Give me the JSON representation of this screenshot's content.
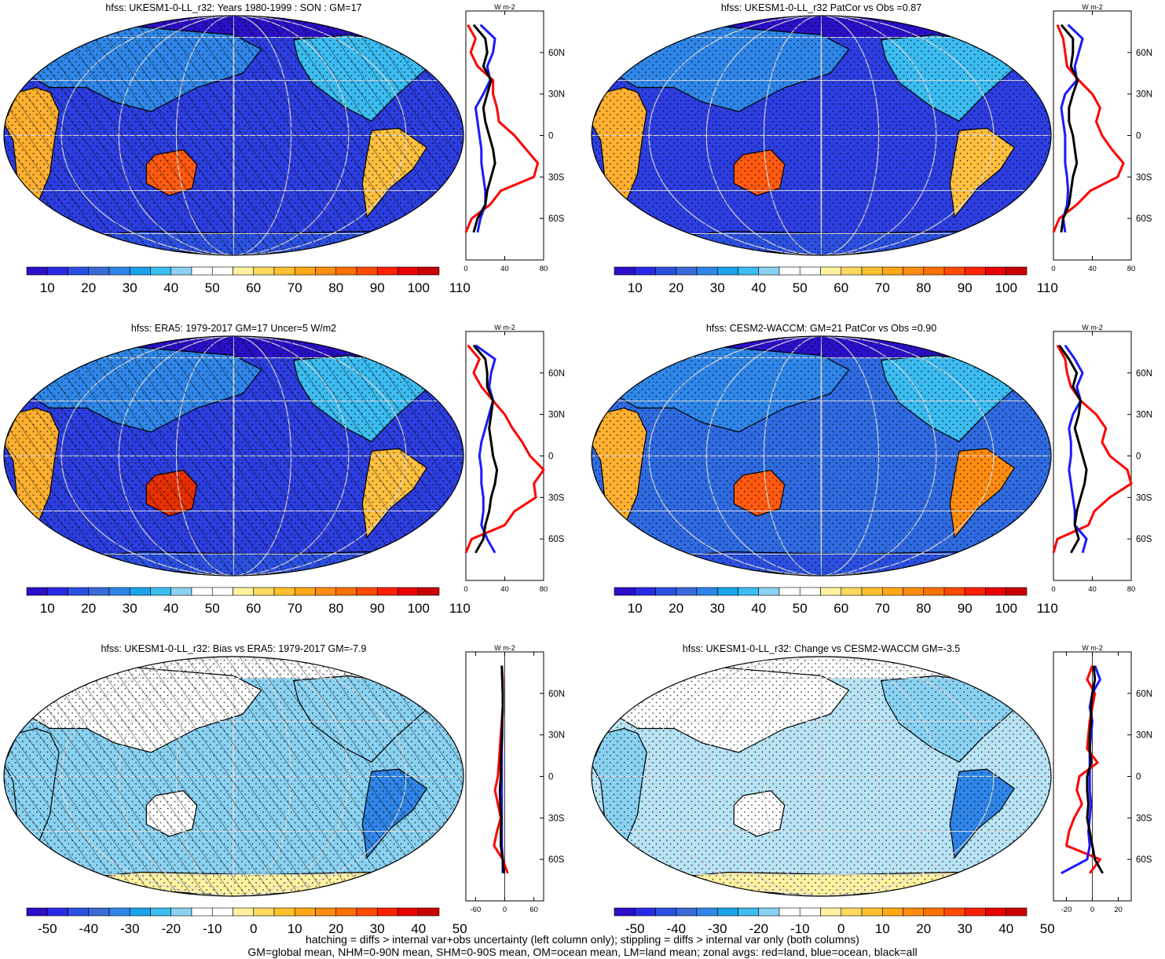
{
  "footnote": [
    "hatching = diffs > internal var+obs uncertainty (left column only); stippling = diffs > internal var only (both columns)",
    "GM=global mean, NHM=0-90N mean, SHM=0-90S mean, OM=ocean mean, LM=land mean; zonal avgs: red=land, blue=ocean, black=all"
  ],
  "colors": {
    "land": "#ff0000",
    "ocean": "#1a1aff",
    "all": "#000000",
    "grid": "#d9d9d9",
    "coast": "#000000"
  },
  "chart_data": [
    {
      "type": "heatmap",
      "id": "p1",
      "title": "hfss: UKESM1-0-LL_r32: Years 1980-1999 : SON : GM=17",
      "colorbar": {
        "ticks": [
          "10",
          "20",
          "30",
          "40",
          "50",
          "60",
          "70",
          "80",
          "90",
          "100",
          "110"
        ],
        "colors": [
          "#2a10c8",
          "#2a2ae6",
          "#2c50e0",
          "#3a6ad8",
          "#2f86e8",
          "#1aa3ea",
          "#3cbcf0",
          "#8ad2f2",
          "#ffffff",
          "#ffffff",
          "#fff2a0",
          "#ffd860",
          "#ffc030",
          "#ffa818",
          "#ff8c10",
          "#ff7000",
          "#ff4a00",
          "#ff2000",
          "#e80000",
          "#c80000"
        ]
      },
      "hatched": true,
      "zonal_profile": {
        "unit": "W m-2",
        "x_ticks": [
          "0",
          "40",
          "80"
        ],
        "xlim": [
          0,
          80
        ],
        "lat_ticks": [
          "60N",
          "30N",
          "0",
          "30S",
          "60S"
        ],
        "lat": [
          80,
          70,
          60,
          50,
          40,
          30,
          20,
          10,
          0,
          -10,
          -20,
          -30,
          -40,
          -50,
          -60,
          -70
        ],
        "land": [
          2,
          10,
          5,
          12,
          28,
          28,
          32,
          34,
          50,
          62,
          74,
          70,
          36,
          25,
          6,
          0
        ],
        "ocean": [
          15,
          30,
          28,
          22,
          25,
          18,
          10,
          12,
          14,
          16,
          16,
          18,
          20,
          20,
          15,
          12
        ],
        "all": [
          8,
          20,
          22,
          18,
          26,
          22,
          18,
          20,
          24,
          28,
          30,
          26,
          22,
          20,
          12,
          8
        ]
      }
    },
    {
      "type": "heatmap",
      "id": "p2",
      "title": "hfss: UKESM1-0-LL_r32 PatCor vs Obs =0.87",
      "colorbar": {
        "ticks": [
          "10",
          "20",
          "30",
          "40",
          "50",
          "60",
          "70",
          "80",
          "90",
          "100",
          "110"
        ],
        "colors": [
          "#2a10c8",
          "#2a2ae6",
          "#2c50e0",
          "#3a6ad8",
          "#2f86e8",
          "#1aa3ea",
          "#3cbcf0",
          "#8ad2f2",
          "#ffffff",
          "#ffffff",
          "#fff2a0",
          "#ffd860",
          "#ffc030",
          "#ffa818",
          "#ff8c10",
          "#ff7000",
          "#ff4a00",
          "#ff2000",
          "#e80000",
          "#c80000"
        ]
      },
      "hatched": false,
      "zonal_profile": {
        "unit": "W m-2",
        "x_ticks": [
          "0",
          "40",
          "80"
        ],
        "xlim": [
          0,
          80
        ],
        "lat_ticks": [
          "60N",
          "30N",
          "0",
          "30S",
          "60S"
        ],
        "lat": [
          80,
          70,
          60,
          50,
          40,
          30,
          20,
          10,
          0,
          -10,
          -20,
          -30,
          -40,
          -50,
          -60,
          -70
        ],
        "land": [
          4,
          10,
          12,
          14,
          26,
          40,
          48,
          44,
          50,
          60,
          72,
          66,
          38,
          24,
          6,
          0
        ],
        "ocean": [
          15,
          30,
          26,
          22,
          24,
          12,
          8,
          10,
          12,
          12,
          12,
          14,
          15,
          14,
          10,
          12
        ],
        "all": [
          8,
          20,
          20,
          18,
          25,
          20,
          16,
          16,
          20,
          22,
          24,
          20,
          18,
          16,
          10,
          8
        ]
      }
    },
    {
      "type": "heatmap",
      "id": "p3",
      "title": "hfss: ERA5: 1979-2017 GM=17 Uncer=5 W/m2",
      "colorbar": {
        "ticks": [
          "10",
          "20",
          "30",
          "40",
          "50",
          "60",
          "70",
          "80",
          "90",
          "100",
          "110"
        ],
        "colors": [
          "#2a10c8",
          "#2a2ae6",
          "#2c50e0",
          "#3a6ad8",
          "#2f86e8",
          "#1aa3ea",
          "#3cbcf0",
          "#8ad2f2",
          "#ffffff",
          "#ffffff",
          "#fff2a0",
          "#ffd860",
          "#ffc030",
          "#ffa818",
          "#ff8c10",
          "#ff7000",
          "#ff4a00",
          "#ff2000",
          "#e80000",
          "#c80000"
        ]
      },
      "hatched": true,
      "zonal_profile": {
        "unit": "W m-2",
        "x_ticks": [
          "0",
          "40",
          "80"
        ],
        "xlim": [
          0,
          80
        ],
        "lat_ticks": [
          "60N",
          "30N",
          "0",
          "30S",
          "60S"
        ],
        "lat": [
          80,
          70,
          60,
          50,
          40,
          30,
          20,
          10,
          0,
          -10,
          -20,
          -30,
          -40,
          -50,
          -60,
          -70
        ],
        "land": [
          2,
          14,
          8,
          16,
          28,
          40,
          48,
          58,
          66,
          80,
          70,
          72,
          50,
          40,
          6,
          0
        ],
        "ocean": [
          10,
          30,
          26,
          24,
          28,
          24,
          20,
          16,
          14,
          16,
          16,
          18,
          18,
          16,
          22,
          30
        ],
        "all": [
          8,
          20,
          22,
          22,
          28,
          26,
          24,
          26,
          28,
          32,
          30,
          26,
          24,
          20,
          18,
          10
        ]
      }
    },
    {
      "type": "heatmap",
      "id": "p4",
      "title": "hfss: CESM2-WACCM: GM=21 PatCor vs Obs =0.90",
      "colorbar": {
        "ticks": [
          "10",
          "20",
          "30",
          "40",
          "50",
          "60",
          "70",
          "80",
          "90",
          "100",
          "110"
        ],
        "colors": [
          "#2a10c8",
          "#2a2ae6",
          "#2c50e0",
          "#3a6ad8",
          "#2f86e8",
          "#1aa3ea",
          "#3cbcf0",
          "#8ad2f2",
          "#ffffff",
          "#ffffff",
          "#fff2a0",
          "#ffd860",
          "#ffc030",
          "#ffa818",
          "#ff8c10",
          "#ff7000",
          "#ff4a00",
          "#ff2000",
          "#e80000",
          "#c80000"
        ]
      },
      "hatched": false,
      "zonal_profile": {
        "unit": "W m-2",
        "x_ticks": [
          "0",
          "40",
          "80"
        ],
        "xlim": [
          0,
          80
        ],
        "lat_ticks": [
          "60N",
          "30N",
          "0",
          "30S",
          "60S"
        ],
        "lat": [
          80,
          70,
          60,
          50,
          40,
          30,
          20,
          10,
          0,
          -10,
          -20,
          -30,
          -40,
          -50,
          -60,
          -70
        ],
        "land": [
          4,
          12,
          14,
          18,
          28,
          44,
          54,
          50,
          58,
          76,
          80,
          58,
          42,
          36,
          4,
          0
        ],
        "ocean": [
          12,
          22,
          30,
          24,
          28,
          20,
          16,
          18,
          18,
          16,
          18,
          20,
          22,
          22,
          34,
          30
        ],
        "all": [
          6,
          16,
          24,
          20,
          28,
          26,
          22,
          26,
          30,
          34,
          32,
          28,
          24,
          22,
          26,
          18
        ]
      }
    },
    {
      "type": "heatmap",
      "id": "p5",
      "title": "hfss: UKESM1-0-LL_r32: Bias vs ERA5: 1979-2017  GM=-7.9",
      "colorbar": {
        "ticks": [
          "-50",
          "-40",
          "-30",
          "-20",
          "-10",
          "0",
          "10",
          "20",
          "30",
          "40",
          "50"
        ],
        "colors": [
          "#2a10c8",
          "#2a2ae6",
          "#2c50e0",
          "#3a6ad8",
          "#2f86e8",
          "#1aa3ea",
          "#3cbcf0",
          "#8ad2f2",
          "#ffffff",
          "#ffffff",
          "#fff2a0",
          "#ffd860",
          "#ffc030",
          "#ffa818",
          "#ff8c10",
          "#ff7000",
          "#ff4a00",
          "#ff2000",
          "#e80000",
          "#c80000"
        ]
      },
      "hatched": true,
      "zonal_profile": {
        "unit": "W m-2",
        "x_ticks": [
          "-60",
          "0",
          "60"
        ],
        "xlim": [
          -80,
          80
        ],
        "lat_ticks": [
          "60N",
          "30N",
          "0",
          "30S",
          "60S"
        ],
        "lat": [
          80,
          70,
          60,
          50,
          40,
          30,
          20,
          10,
          0,
          -10,
          -20,
          -30,
          -40,
          -50,
          -60,
          -70
        ],
        "land": [
          -6,
          -4,
          -4,
          -4,
          -6,
          -8,
          -10,
          -12,
          -14,
          -20,
          -14,
          -8,
          -16,
          -22,
          -4,
          6
        ],
        "ocean": [
          -6,
          -5,
          -4,
          -4,
          -5,
          -5,
          -6,
          -6,
          -6,
          -6,
          -6,
          -6,
          -6,
          -6,
          -4,
          -4
        ],
        "all": [
          -6,
          -5,
          -4,
          -4,
          -5,
          -6,
          -7,
          -8,
          -8,
          -10,
          -9,
          -7,
          -8,
          -8,
          -4,
          -2
        ]
      }
    },
    {
      "type": "heatmap",
      "id": "p6",
      "title": "hfss: UKESM1-0-LL_r32: Change vs CESM2-WACCM GM=-3.5",
      "colorbar": {
        "ticks": [
          "-50",
          "-40",
          "-30",
          "-20",
          "-10",
          "0",
          "10",
          "20",
          "30",
          "40",
          "50"
        ],
        "colors": [
          "#2a10c8",
          "#2a2ae6",
          "#2c50e0",
          "#3a6ad8",
          "#2f86e8",
          "#1aa3ea",
          "#3cbcf0",
          "#8ad2f2",
          "#ffffff",
          "#ffffff",
          "#fff2a0",
          "#ffd860",
          "#ffc030",
          "#ffa818",
          "#ff8c10",
          "#ff7000",
          "#ff4a00",
          "#ff2000",
          "#e80000",
          "#c80000"
        ]
      },
      "hatched": false,
      "zonal_profile": {
        "unit": "W m-2",
        "x_ticks": [
          "-20",
          "0",
          "20"
        ],
        "xlim": [
          -30,
          30
        ],
        "lat_ticks": [
          "60N",
          "30N",
          "0",
          "30S",
          "60S"
        ],
        "lat": [
          80,
          70,
          60,
          50,
          40,
          30,
          20,
          10,
          0,
          -10,
          -20,
          -30,
          -40,
          -50,
          -60,
          -70
        ],
        "land": [
          0,
          -4,
          2,
          0,
          -2,
          -3,
          -4,
          4,
          -10,
          -12,
          -8,
          -14,
          -18,
          -20,
          6,
          -2
        ],
        "ocean": [
          2,
          6,
          0,
          -2,
          0,
          -1,
          -2,
          -2,
          -2,
          -2,
          -1,
          -2,
          -3,
          -2,
          -4,
          -24
        ],
        "all": [
          1,
          2,
          0,
          -1,
          -1,
          -2,
          -2,
          -1,
          -4,
          -4,
          -3,
          -4,
          -2,
          0,
          2,
          8
        ]
      }
    }
  ]
}
